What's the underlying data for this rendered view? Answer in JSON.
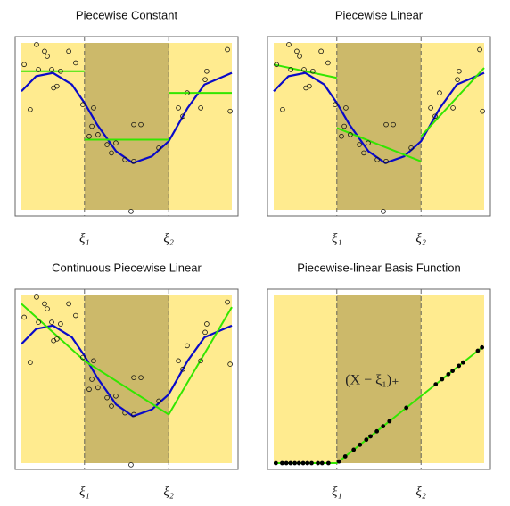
{
  "chart_data": [
    {
      "type": "scatter",
      "title": "Piecewise Constant",
      "xlim": [
        0,
        10
      ],
      "ylim": [
        0,
        10
      ],
      "xticks": [
        {
          "value": 3,
          "label": "ξ₁"
        },
        {
          "value": 7,
          "label": "ξ₂"
        }
      ],
      "region_colors": [
        "#ffeb8f",
        "#ccb96a",
        "#ffeb8f"
      ],
      "points": {
        "color": "#111111",
        "filled": false,
        "x": [
          0.13,
          0.72,
          0.81,
          1.1,
          1.23,
          1.44,
          1.53,
          1.69,
          1.86,
          2.25,
          2.58,
          0.42,
          2.92,
          3.43,
          3.35,
          3.22,
          3.64,
          4.07,
          4.49,
          4.28,
          4.92,
          5.34,
          5.68,
          5.34,
          5.21,
          6.53,
          7.46,
          7.67,
          7.88,
          8.52,
          8.81,
          8.73,
          9.79,
          9.92
        ],
        "values": [
          8.7,
          9.9,
          8.4,
          9.5,
          9.2,
          8.4,
          7.3,
          7.4,
          8.3,
          9.5,
          8.8,
          6.0,
          6.3,
          6.1,
          5.0,
          4.4,
          4.5,
          3.9,
          4.0,
          3.4,
          3.0,
          5.1,
          5.1,
          2.9,
          -0.1,
          3.7,
          6.1,
          5.6,
          7.0,
          6.1,
          8.3,
          7.8,
          9.6,
          5.9
        ]
      },
      "curve": {
        "color": "#0a0ac8",
        "x": [
          0,
          0.7,
          1.5,
          2.4,
          3,
          3.6,
          4.5,
          5.3,
          6.2,
          7,
          7.9,
          8.7,
          10
        ],
        "values": [
          7.1,
          8.0,
          8.2,
          7.5,
          6.4,
          5.1,
          3.5,
          2.8,
          3.2,
          4.1,
          6.1,
          7.5,
          8.2
        ]
      },
      "fit": {
        "color": "#33e600",
        "segments": [
          {
            "x": [
              0,
              3
            ],
            "values": [
              8.3,
              8.3
            ]
          },
          {
            "x": [
              3,
              7
            ],
            "values": [
              4.2,
              4.2
            ]
          },
          {
            "x": [
              7,
              10
            ],
            "values": [
              7.0,
              7.0
            ]
          }
        ]
      }
    },
    {
      "type": "scatter",
      "title": "Piecewise Linear",
      "xlim": [
        0,
        10
      ],
      "ylim": [
        0,
        10
      ],
      "xticks": [
        {
          "value": 3,
          "label": "ξ₁"
        },
        {
          "value": 7,
          "label": "ξ₂"
        }
      ],
      "region_colors": [
        "#ffeb8f",
        "#ccb96a",
        "#ffeb8f"
      ],
      "points": {
        "color": "#111111",
        "filled": false,
        "x": [
          0.13,
          0.72,
          0.81,
          1.1,
          1.23,
          1.44,
          1.53,
          1.69,
          1.86,
          2.25,
          2.58,
          0.42,
          2.92,
          3.43,
          3.35,
          3.22,
          3.64,
          4.07,
          4.49,
          4.28,
          4.92,
          5.34,
          5.68,
          5.34,
          5.21,
          6.53,
          7.46,
          7.67,
          7.88,
          8.52,
          8.81,
          8.73,
          9.79,
          9.92
        ],
        "values": [
          8.7,
          9.9,
          8.4,
          9.5,
          9.2,
          8.4,
          7.3,
          7.4,
          8.3,
          9.5,
          8.8,
          6.0,
          6.3,
          6.1,
          5.0,
          4.4,
          4.5,
          3.9,
          4.0,
          3.4,
          3.0,
          5.1,
          5.1,
          2.9,
          -0.1,
          3.7,
          6.1,
          5.6,
          7.0,
          6.1,
          8.3,
          7.8,
          9.6,
          5.9
        ]
      },
      "curve": {
        "color": "#0a0ac8",
        "x": [
          0,
          0.7,
          1.5,
          2.4,
          3,
          3.6,
          4.5,
          5.3,
          6.2,
          7,
          7.9,
          8.7,
          10
        ],
        "values": [
          7.1,
          8.0,
          8.2,
          7.5,
          6.4,
          5.1,
          3.5,
          2.8,
          3.2,
          4.1,
          6.1,
          7.5,
          8.2
        ]
      },
      "fit": {
        "color": "#33e600",
        "segments": [
          {
            "x": [
              0,
              3
            ],
            "values": [
              8.7,
              7.9
            ]
          },
          {
            "x": [
              3,
              7
            ],
            "values": [
              4.9,
              2.9
            ]
          },
          {
            "x": [
              7,
              10
            ],
            "values": [
              4.4,
              8.5
            ]
          }
        ]
      }
    },
    {
      "type": "scatter",
      "title": "Continuous Piecewise Linear",
      "xlim": [
        0,
        10
      ],
      "ylim": [
        0,
        10
      ],
      "xticks": [
        {
          "value": 3,
          "label": "ξ₁"
        },
        {
          "value": 7,
          "label": "ξ₂"
        }
      ],
      "region_colors": [
        "#ffeb8f",
        "#ccb96a",
        "#ffeb8f"
      ],
      "points": {
        "color": "#111111",
        "filled": false,
        "x": [
          0.13,
          0.72,
          0.81,
          1.1,
          1.23,
          1.44,
          1.53,
          1.69,
          1.86,
          2.25,
          2.58,
          0.42,
          2.92,
          3.43,
          3.35,
          3.22,
          3.64,
          4.07,
          4.49,
          4.28,
          4.92,
          5.34,
          5.68,
          5.34,
          5.21,
          6.53,
          7.46,
          7.67,
          7.88,
          8.52,
          8.81,
          8.73,
          9.79,
          9.92
        ],
        "values": [
          8.7,
          9.9,
          8.4,
          9.5,
          9.2,
          8.4,
          7.3,
          7.4,
          8.3,
          9.5,
          8.8,
          6.0,
          6.3,
          6.1,
          5.0,
          4.4,
          4.5,
          3.9,
          4.0,
          3.4,
          3.0,
          5.1,
          5.1,
          2.9,
          -0.1,
          3.7,
          6.1,
          5.6,
          7.0,
          6.1,
          8.3,
          7.8,
          9.6,
          5.9
        ]
      },
      "curve": {
        "color": "#0a0ac8",
        "x": [
          0,
          0.7,
          1.5,
          2.4,
          3,
          3.6,
          4.5,
          5.3,
          6.2,
          7,
          7.9,
          8.7,
          10
        ],
        "values": [
          7.1,
          8.0,
          8.2,
          7.5,
          6.4,
          5.1,
          3.5,
          2.8,
          3.2,
          4.1,
          6.1,
          7.5,
          8.2
        ]
      },
      "fit": {
        "color": "#33e600",
        "segments": [
          {
            "x": [
              0,
              3,
              7,
              10
            ],
            "values": [
              9.5,
              6.1,
              2.9,
              9.3
            ]
          }
        ]
      }
    },
    {
      "type": "scatter",
      "title": "Piecewise-linear Basis Function",
      "annotation": "(X − ξ₁)₊",
      "xlim": [
        0,
        10
      ],
      "ylim": [
        0,
        10
      ],
      "xticks": [
        {
          "value": 3,
          "label": "ξ₁"
        },
        {
          "value": 7,
          "label": "ξ₂"
        }
      ],
      "region_colors": [
        "#ffeb8f",
        "#ccb96a",
        "#ffeb8f"
      ],
      "points": {
        "color": "#000000",
        "filled": true,
        "x": [
          0.1,
          0.4,
          0.6,
          0.8,
          1.0,
          1.2,
          1.4,
          1.6,
          1.8,
          2.1,
          2.3,
          2.6,
          3.1,
          3.4,
          3.8,
          4.1,
          4.4,
          4.6,
          4.9,
          5.2,
          5.5,
          6.3,
          7.7,
          8.0,
          8.3,
          8.5,
          8.8,
          9.0,
          9.7,
          9.9
        ],
        "values": [
          0,
          0,
          0,
          0,
          0,
          0,
          0,
          0,
          0,
          0,
          0,
          0,
          0.1,
          0.4,
          0.8,
          1.1,
          1.4,
          1.6,
          1.9,
          2.2,
          2.5,
          3.3,
          4.7,
          5.0,
          5.3,
          5.5,
          5.8,
          6.0,
          6.7,
          6.9
        ]
      },
      "fit": {
        "color": "#33e600",
        "segments": [
          {
            "x": [
              0,
              3,
              9.9
            ],
            "values": [
              0,
              0,
              6.9
            ]
          }
        ]
      }
    }
  ]
}
